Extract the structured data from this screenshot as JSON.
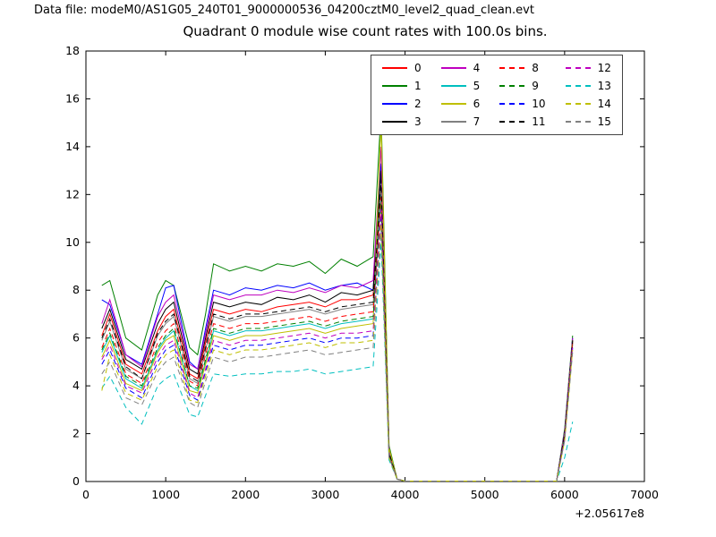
{
  "header": {
    "data_file_label": "Data file: modeM0/AS1G05_240T01_9000000536_04200cztM0_level2_quad_clean.evt"
  },
  "chart_data": {
    "type": "line",
    "title": "Quadrant 0 module wise count rates with 100.0s bins.",
    "xlabel": "",
    "ylabel": "",
    "xlim": [
      0,
      7000
    ],
    "ylim": [
      0,
      18
    ],
    "xticks": [
      0,
      1000,
      2000,
      3000,
      4000,
      5000,
      6000,
      7000
    ],
    "yticks": [
      0,
      2,
      4,
      6,
      8,
      10,
      12,
      14,
      16,
      18
    ],
    "x_offset_label": "+2.05617e8",
    "grid": false,
    "legend_position": "upper center-right inside axes, 4 columns",
    "x": [
      200,
      300,
      500,
      700,
      900,
      1000,
      1100,
      1300,
      1400,
      1500,
      1600,
      1800,
      2000,
      2200,
      2400,
      2600,
      2800,
      3000,
      3200,
      3400,
      3600,
      3700,
      3800,
      3900,
      4000,
      5000,
      5900,
      6000,
      6100
    ],
    "series": [
      {
        "name": "0",
        "color": "#ff0000",
        "dashed": false,
        "values": [
          6.1,
          7.0,
          4.9,
          4.5,
          6.3,
          6.9,
          7.2,
          4.5,
          4.3,
          5.8,
          7.2,
          7.0,
          7.2,
          7.1,
          7.3,
          7.4,
          7.5,
          7.3,
          7.6,
          7.6,
          7.8,
          12.2,
          1.2,
          0.1,
          0.02,
          0.02,
          0.02,
          2.0,
          5.9
        ]
      },
      {
        "name": "1",
        "color": "#008000",
        "dashed": false,
        "values": [
          8.2,
          8.4,
          6.0,
          5.5,
          7.8,
          8.4,
          8.2,
          5.6,
          5.3,
          7.0,
          9.1,
          8.8,
          9.0,
          8.8,
          9.1,
          9.0,
          9.2,
          8.7,
          9.3,
          9.0,
          9.4,
          15.5,
          1.5,
          0.1,
          0.02,
          0.02,
          0.02,
          2.2,
          6.1
        ]
      },
      {
        "name": "2",
        "color": "#0000ff",
        "dashed": false,
        "values": [
          7.6,
          7.4,
          5.3,
          4.9,
          7.0,
          8.1,
          8.2,
          5.0,
          4.7,
          6.4,
          8.0,
          7.8,
          8.1,
          8.0,
          8.2,
          8.1,
          8.3,
          8.0,
          8.2,
          8.3,
          8.0,
          13.3,
          1.3,
          0.1,
          0.02,
          0.02,
          0.02,
          2.1,
          6.0
        ]
      },
      {
        "name": "3",
        "color": "#000000",
        "dashed": false,
        "values": [
          6.4,
          7.2,
          5.1,
          4.7,
          6.6,
          7.2,
          7.5,
          4.7,
          4.5,
          6.0,
          7.5,
          7.3,
          7.5,
          7.4,
          7.7,
          7.6,
          7.8,
          7.5,
          7.9,
          7.8,
          8.0,
          13.0,
          1.2,
          0.1,
          0.02,
          0.02,
          0.02,
          2.0,
          5.9
        ]
      },
      {
        "name": "4",
        "color": "#bf00bf",
        "dashed": false,
        "values": [
          6.6,
          7.6,
          5.3,
          4.8,
          6.9,
          7.5,
          7.8,
          4.9,
          4.7,
          6.2,
          7.8,
          7.6,
          7.8,
          7.8,
          8.0,
          7.9,
          8.1,
          7.9,
          8.2,
          8.1,
          8.4,
          14.0,
          1.3,
          0.1,
          0.02,
          0.02,
          0.02,
          2.1,
          6.0
        ]
      },
      {
        "name": "5",
        "color": "#00bfbf",
        "dashed": false,
        "values": [
          5.4,
          6.1,
          4.3,
          3.9,
          5.5,
          6.0,
          6.3,
          4.0,
          3.8,
          5.0,
          6.3,
          6.1,
          6.3,
          6.3,
          6.4,
          6.5,
          6.6,
          6.4,
          6.6,
          6.7,
          6.8,
          12.0,
          1.1,
          0.1,
          0.02,
          0.02,
          0.02,
          1.9,
          5.8
        ]
      },
      {
        "name": "6",
        "color": "#bfbf00",
        "dashed": false,
        "values": [
          5.2,
          5.9,
          4.1,
          3.8,
          5.4,
          5.9,
          6.1,
          3.8,
          3.7,
          4.9,
          6.1,
          5.9,
          6.1,
          6.1,
          6.2,
          6.3,
          6.4,
          6.2,
          6.4,
          6.5,
          6.6,
          15.0,
          1.4,
          0.1,
          0.02,
          0.02,
          0.02,
          2.0,
          5.9
        ]
      },
      {
        "name": "7",
        "color": "#808080",
        "dashed": false,
        "values": [
          5.9,
          6.7,
          4.7,
          4.3,
          6.1,
          6.6,
          6.9,
          4.3,
          4.1,
          5.5,
          6.9,
          6.7,
          6.9,
          6.9,
          7.0,
          7.1,
          7.2,
          7.0,
          7.2,
          7.3,
          7.4,
          12.5,
          1.2,
          0.1,
          0.02,
          0.02,
          0.02,
          2.0,
          5.9
        ]
      },
      {
        "name": "8",
        "color": "#ff0000",
        "dashed": true,
        "values": [
          5.6,
          6.4,
          4.5,
          4.1,
          5.8,
          6.3,
          6.6,
          4.2,
          4.0,
          5.3,
          6.6,
          6.4,
          6.6,
          6.6,
          6.7,
          6.8,
          6.9,
          6.7,
          6.9,
          7.0,
          7.1,
          11.9,
          1.1,
          0.1,
          0.02,
          0.02,
          0.02,
          1.9,
          5.8
        ]
      },
      {
        "name": "9",
        "color": "#008000",
        "dashed": true,
        "values": [
          5.5,
          6.2,
          4.4,
          4.0,
          5.6,
          6.1,
          6.4,
          4.0,
          3.9,
          5.1,
          6.4,
          6.2,
          6.4,
          6.4,
          6.5,
          6.6,
          6.7,
          6.5,
          6.7,
          6.8,
          6.9,
          11.6,
          1.1,
          0.1,
          0.02,
          0.02,
          0.02,
          1.9,
          5.7
        ]
      },
      {
        "name": "10",
        "color": "#0000ff",
        "dashed": true,
        "values": [
          4.9,
          5.5,
          3.9,
          3.5,
          5.0,
          5.5,
          5.7,
          3.6,
          3.4,
          4.6,
          5.7,
          5.5,
          5.7,
          5.7,
          5.8,
          5.9,
          6.0,
          5.8,
          6.0,
          6.0,
          6.1,
          11.0,
          1.0,
          0.1,
          0.02,
          0.02,
          0.02,
          1.8,
          5.6
        ]
      },
      {
        "name": "11",
        "color": "#000000",
        "dashed": true,
        "values": [
          6.0,
          6.8,
          4.8,
          4.3,
          6.2,
          6.7,
          7.0,
          4.4,
          4.2,
          5.6,
          7.0,
          6.8,
          7.0,
          7.0,
          7.1,
          7.2,
          7.3,
          7.1,
          7.3,
          7.4,
          7.5,
          12.6,
          1.2,
          0.1,
          0.02,
          0.02,
          0.02,
          2.0,
          5.9
        ]
      },
      {
        "name": "12",
        "color": "#bf00bf",
        "dashed": true,
        "values": [
          5.1,
          5.7,
          4.0,
          3.7,
          5.2,
          5.7,
          5.9,
          3.7,
          3.5,
          4.7,
          5.9,
          5.7,
          5.9,
          5.9,
          6.0,
          6.1,
          6.2,
          6.0,
          6.2,
          6.2,
          6.3,
          11.4,
          1.0,
          0.1,
          0.02,
          0.02,
          0.02,
          1.8,
          5.7
        ]
      },
      {
        "name": "13",
        "color": "#00bfbf",
        "dashed": true,
        "values": [
          3.9,
          4.4,
          3.1,
          2.4,
          4.0,
          4.3,
          4.5,
          2.8,
          2.7,
          3.6,
          4.5,
          4.4,
          4.5,
          4.5,
          4.6,
          4.6,
          4.7,
          4.5,
          4.6,
          4.7,
          4.8,
          10.0,
          0.9,
          0.1,
          0.02,
          0.02,
          0.02,
          1.0,
          2.5
        ]
      },
      {
        "name": "14",
        "color": "#bfbf00",
        "dashed": true,
        "values": [
          3.8,
          5.3,
          3.7,
          3.4,
          4.8,
          5.3,
          5.5,
          3.4,
          3.3,
          4.4,
          5.5,
          5.3,
          5.5,
          5.5,
          5.6,
          5.7,
          5.8,
          5.6,
          5.8,
          5.8,
          5.9,
          10.8,
          1.0,
          0.1,
          0.02,
          0.02,
          0.02,
          1.7,
          5.5
        ]
      },
      {
        "name": "15",
        "color": "#808080",
        "dashed": true,
        "values": [
          4.5,
          5.0,
          3.5,
          3.2,
          4.6,
          5.0,
          5.2,
          3.3,
          3.1,
          4.2,
          5.2,
          5.0,
          5.2,
          5.2,
          5.3,
          5.4,
          5.5,
          5.3,
          5.4,
          5.5,
          5.6,
          10.5,
          1.0,
          0.1,
          0.02,
          0.02,
          0.02,
          1.7,
          5.4
        ]
      }
    ]
  }
}
